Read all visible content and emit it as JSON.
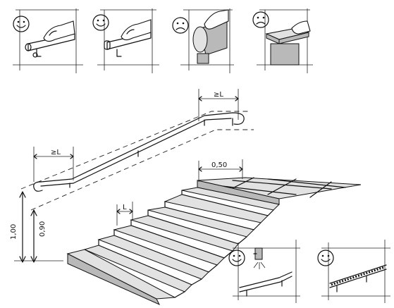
{
  "panels": [
    {
      "rating": "good",
      "face": "smiley-face"
    },
    {
      "rating": "good",
      "face": "smiley-face"
    },
    {
      "rating": "bad",
      "face": "frowning-face"
    },
    {
      "rating": "bad",
      "face": "frowning-face"
    },
    {
      "rating": "good",
      "face": "smiley-face"
    },
    {
      "rating": "good",
      "face": "smiley-face"
    }
  ],
  "dimensions": {
    "handrail_top_extension": "≥L",
    "handrail_bottom_extension": "≥L",
    "step_depth": "L",
    "landing_depth": "0,50",
    "handrail_height_low": "0,90",
    "handrail_height_high": "1,00"
  },
  "colors": {
    "ink": "#111111",
    "shade": "#b9b9b9",
    "light_shade": "#e2e2e2"
  }
}
